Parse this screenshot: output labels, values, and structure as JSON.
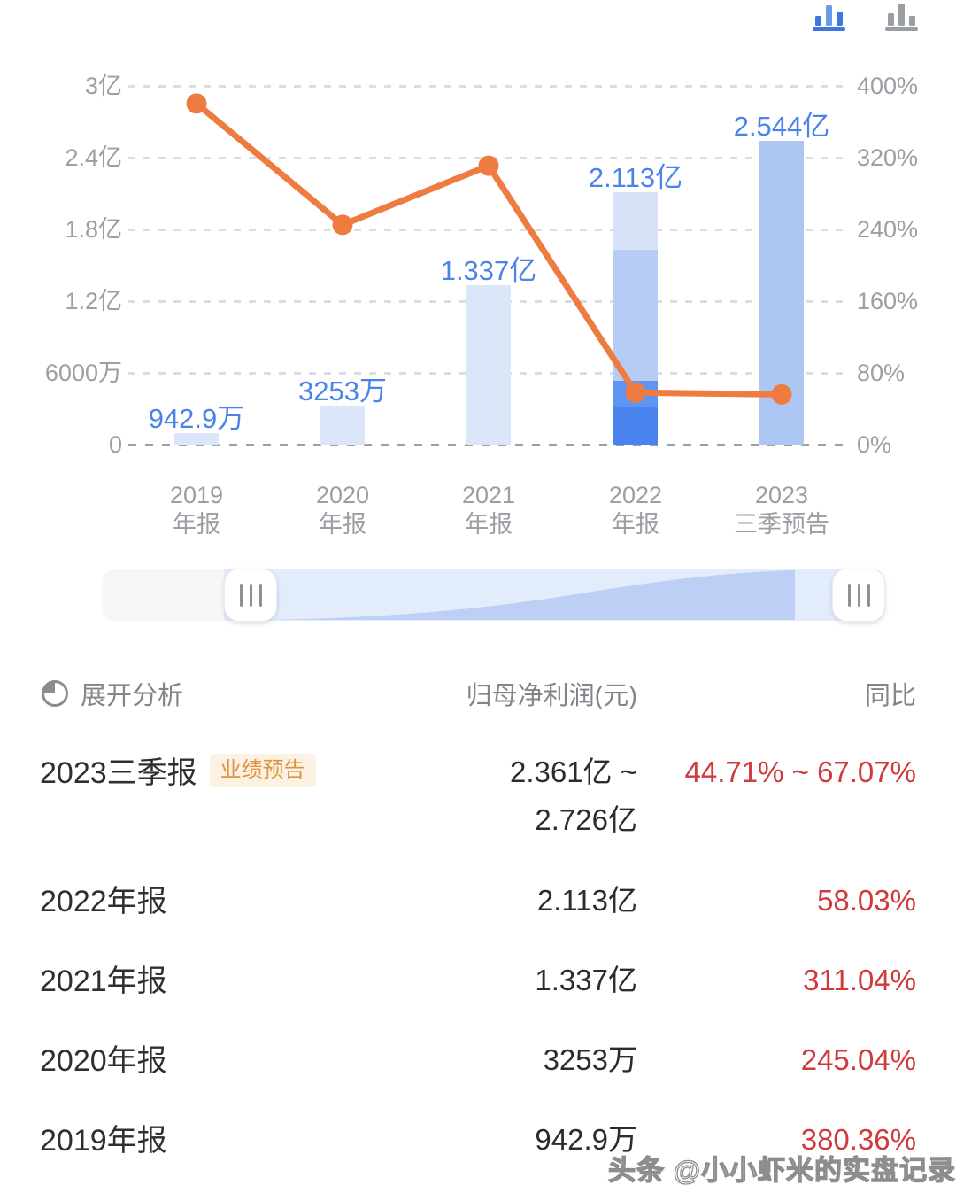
{
  "toolbar": {
    "active_color": "#3d79dd",
    "inactive_color": "#9a9da2"
  },
  "chart_data": {
    "type": "bar+line",
    "categories": [
      "2019\n年报",
      "2020\n年报",
      "2021\n年报",
      "2022\n年报",
      "2023\n三季预告"
    ],
    "bar_series": {
      "name": "归母净利润(元)",
      "values_yi": [
        0.09429,
        0.3253,
        1.337,
        2.113,
        2.544
      ],
      "labels": [
        "942.9万",
        "3253万",
        "1.337亿",
        "2.113亿",
        "2.544亿"
      ],
      "label_color": "#4a84e8",
      "segments": [
        [
          {
            "to": 0.09429,
            "color": "#dbe6f8"
          }
        ],
        [
          {
            "to": 0.3253,
            "color": "#dbe6f8"
          }
        ],
        [
          {
            "to": 1.337,
            "color": "#dbe6f8"
          }
        ],
        [
          {
            "to": 0.31,
            "color": "#4a82ee"
          },
          {
            "to": 0.53,
            "color": "#5e95f2"
          },
          {
            "to": 1.63,
            "color": "#b7ccf5"
          },
          {
            "to": 2.113,
            "color": "#d7e2f8"
          }
        ],
        [
          {
            "to": 2.544,
            "color": "#aec6f4"
          }
        ]
      ]
    },
    "line_series": {
      "name": "同比",
      "values_pct": [
        380.36,
        245.04,
        311.04,
        58.03,
        55.89
      ],
      "color": "#ee7b3f"
    },
    "left_axis": {
      "ticks": [
        "3亿",
        "2.4亿",
        "1.8亿",
        "1.2亿",
        "6000万",
        "0"
      ],
      "max_yi": 3,
      "min": 0
    },
    "right_axis": {
      "ticks": [
        "400%",
        "320%",
        "240%",
        "160%",
        "80%",
        "0%"
      ],
      "max_pct": 400,
      "min": 0
    },
    "grid": "dashed"
  },
  "table": {
    "header": {
      "expand_label": "展开分析",
      "col_value": "归母净利润(元)",
      "col_yoy": "同比"
    },
    "rows": [
      {
        "period": "2023三季报",
        "badge": "业绩预告",
        "value": "2.361亿 ~\n2.726亿",
        "yoy": "44.71% ~ 67.07%"
      },
      {
        "period": "2022年报",
        "value": "2.113亿",
        "yoy": "58.03%"
      },
      {
        "period": "2021年报",
        "value": "1.337亿",
        "yoy": "311.04%"
      },
      {
        "period": "2020年报",
        "value": "3253万",
        "yoy": "245.04%"
      },
      {
        "period": "2019年报",
        "value": "942.9万",
        "yoy": "380.36%"
      }
    ],
    "yoy_color": "#cf3a3c"
  },
  "watermark": "头条 @小小虾米的实盘记录"
}
